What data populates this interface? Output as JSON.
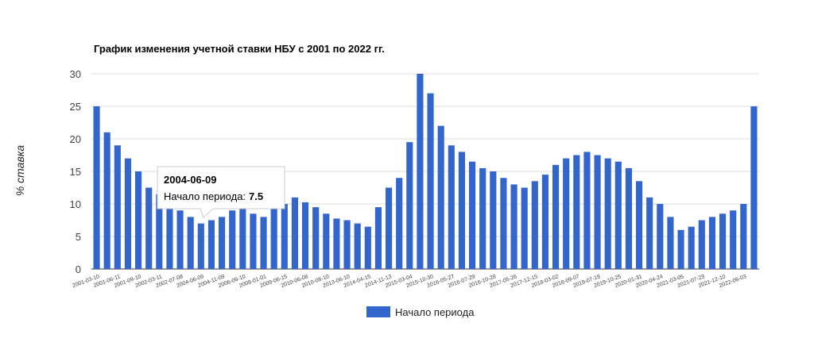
{
  "chart_data": {
    "type": "bar",
    "title": "График изменения учетной ставки НБУ с 2001 по 2022 гг.",
    "ylabel": "% ставка",
    "xlabel": "",
    "ylim": [
      0,
      30
    ],
    "yticks": [
      "0",
      "5",
      "10",
      "15",
      "20",
      "25",
      "30"
    ],
    "xtick_labels": [
      "2001-03-10",
      "2001-06-11",
      "2001-09-10",
      "2002-03-11",
      "2002-07-08",
      "2004-06-09",
      "2004-11-09",
      "2006-06-10",
      "2008-01-01",
      "2009-06-15",
      "2010-06-08",
      "2010-08-10",
      "2013-06-10",
      "2014-04-15",
      "2014-11-13",
      "2015-03-04",
      "2015-10-30",
      "2016-05-27",
      "2016-07-29",
      "2016-10-28",
      "2017-05-26",
      "2017-12-15",
      "2018-03-02",
      "2018-09-07",
      "2019-07-19",
      "2019-10-25",
      "2020-01-31",
      "2020-04-24",
      "2021-03-05",
      "2021-07-23",
      "2021-12-10",
      "2022-06-03"
    ],
    "series": [
      {
        "name": "Начало периода",
        "color": "#3366cc",
        "values": [
          25,
          21,
          19,
          17,
          15,
          12.5,
          11.5,
          10,
          9,
          8,
          7,
          7.5,
          8,
          9,
          9.5,
          8.5,
          8,
          9.5,
          10,
          11,
          10.25,
          9.5,
          8.5,
          7.75,
          7.5,
          7,
          6.5,
          9.5,
          12.5,
          14,
          19.5,
          30,
          27,
          22,
          19,
          18,
          16.5,
          15.5,
          15,
          14,
          13,
          12.5,
          13.5,
          14.5,
          16,
          17,
          17.5,
          18,
          17.5,
          17,
          16.5,
          15.5,
          13.5,
          11,
          10,
          8,
          6,
          6.5,
          7.5,
          8,
          8.5,
          9,
          10,
          25
        ]
      }
    ],
    "grid": true,
    "legend_position": "bottom",
    "tooltip": {
      "date": "2004-06-09",
      "series_label": "Начало периода:",
      "value": "7.5"
    }
  }
}
